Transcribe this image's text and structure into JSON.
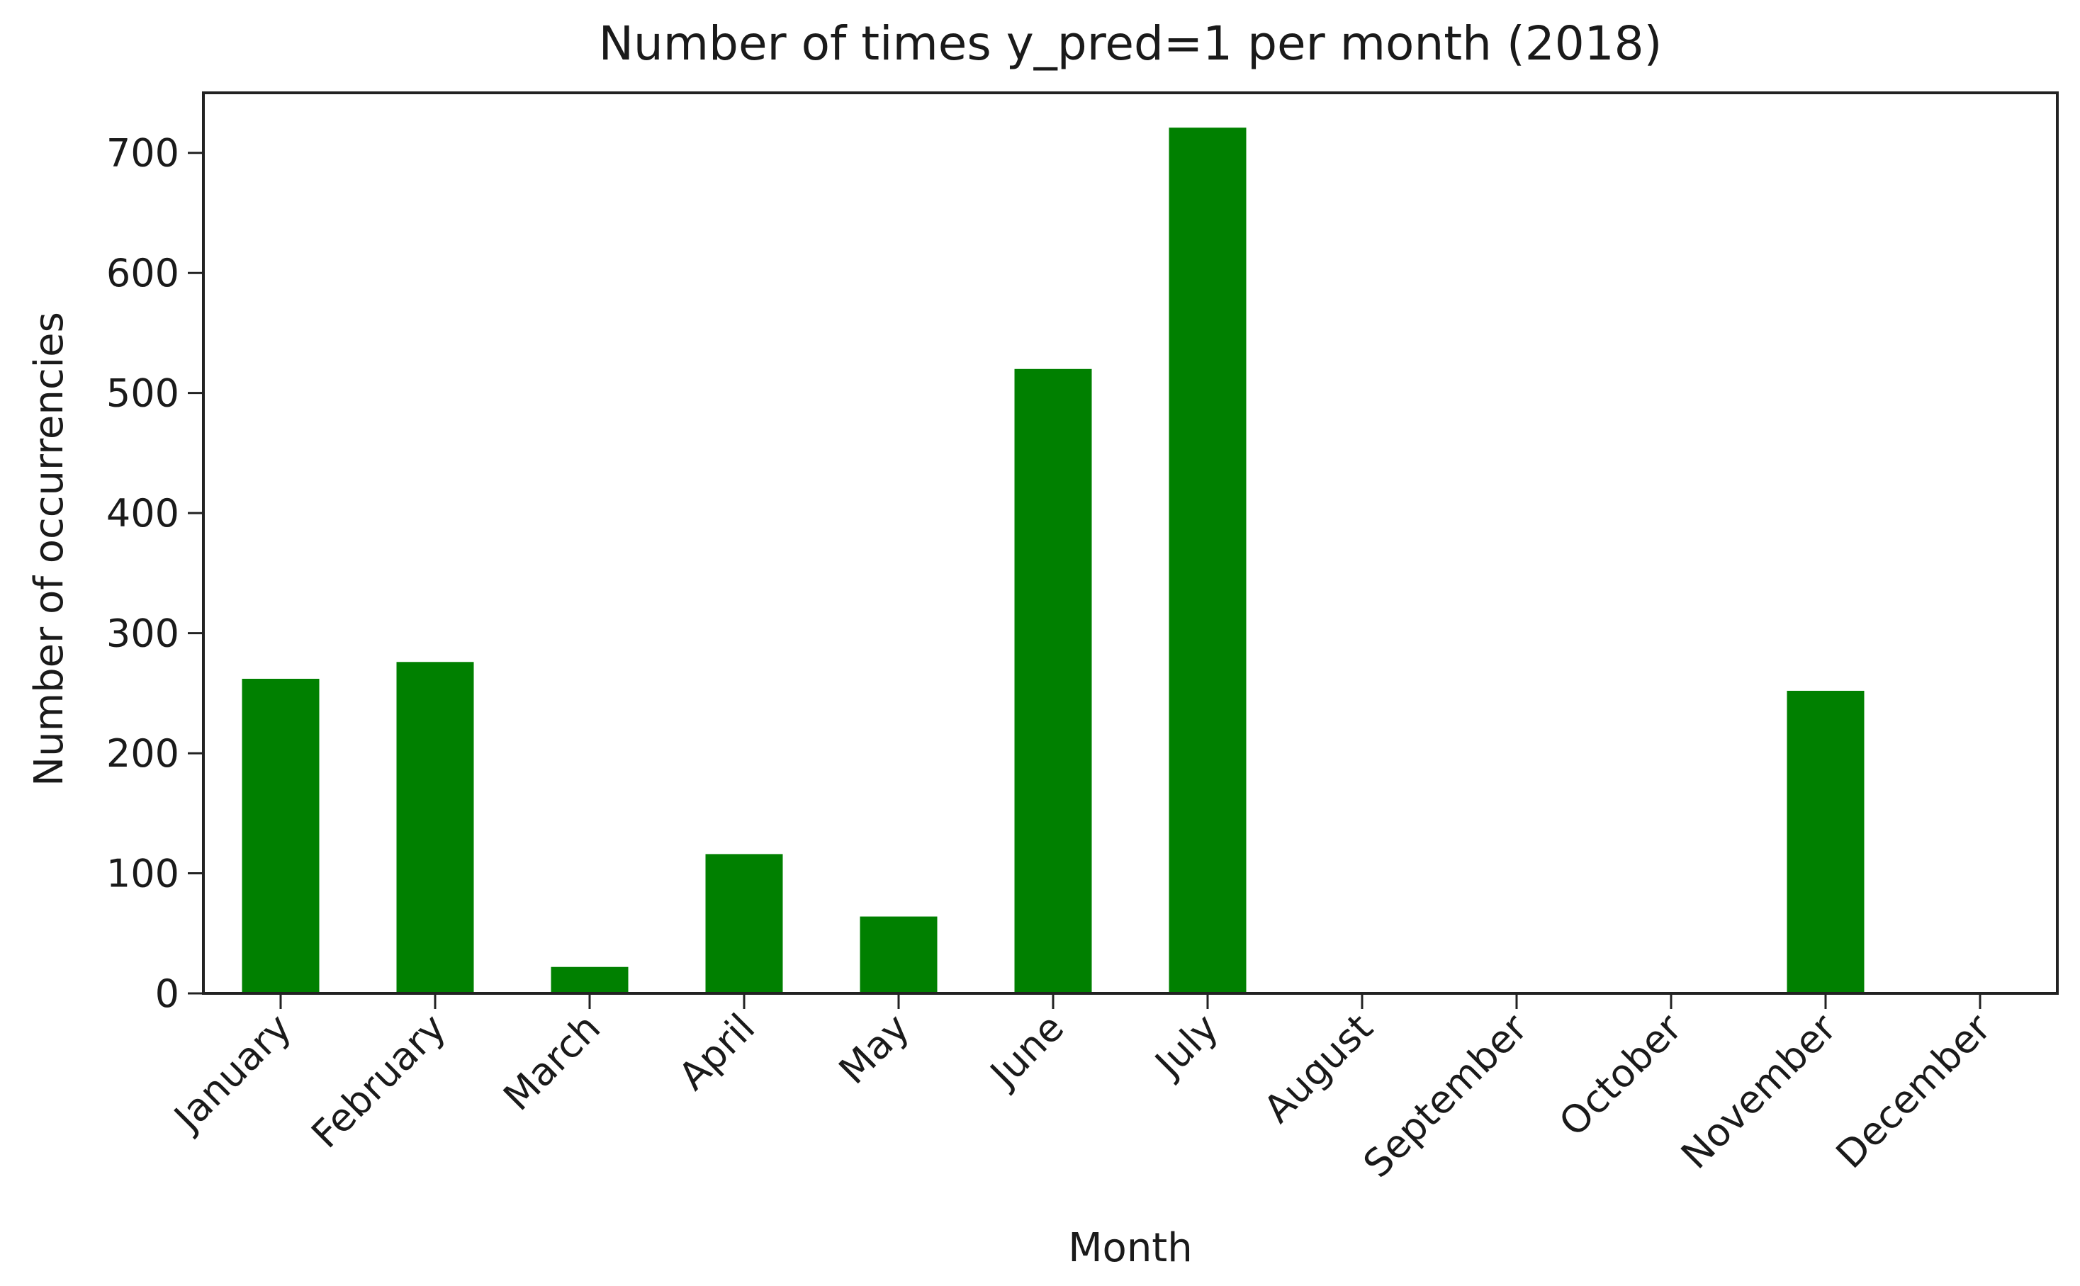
{
  "chart_data": {
    "type": "bar",
    "title": "Number of times y_pred=1 per month (2018)",
    "xlabel": "Month",
    "ylabel": "Number of occurrencies",
    "categories": [
      "January",
      "February",
      "March",
      "April",
      "May",
      "June",
      "July",
      "August",
      "September",
      "October",
      "November",
      "December"
    ],
    "values": [
      262,
      276,
      22,
      116,
      64,
      520,
      721,
      0,
      0,
      0,
      252,
      0
    ],
    "ylim": [
      0,
      750
    ],
    "yticks": [
      0,
      100,
      200,
      300,
      400,
      500,
      600,
      700
    ],
    "bar_color": "#008000",
    "grid": false,
    "legend": false
  }
}
